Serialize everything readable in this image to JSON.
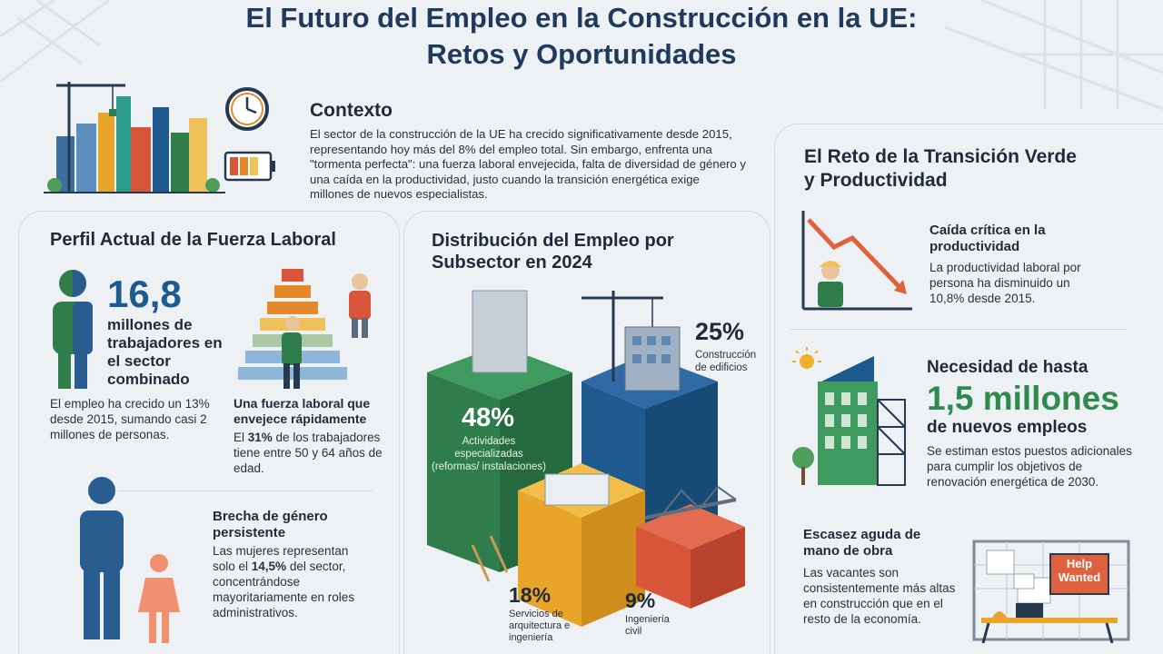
{
  "title": {
    "line1": "El Futuro del Empleo en la Construcción en la UE:",
    "line2": "Retos y Oportunidades"
  },
  "context": {
    "heading": "Contexto",
    "text": "El sector de la construcción de la UE ha crecido significativamente desde 2015, representando hoy más del 8% del empleo total. Sin embargo, enfrenta una \"tormenta perfecta\": una fuerza laboral envejecida, falta de diversidad de género y una caída en la productividad, justo cuando la transición energética exige millones de nuevos especialistas."
  },
  "workforce": {
    "heading": "Perfil Actual de la Fuerza Laboral",
    "big_number": "16,8",
    "big_label": "millones de trabajadores en el sector combinado",
    "growth_text": "El empleo ha crecido un 13% desde 2015, sumando casi 2 millones de personas.",
    "aging_heading": "Una fuerza laboral que envejece rápidamente",
    "aging_text_prefix": "El ",
    "aging_text_bold": "31%",
    "aging_text_suffix": " de los trabajadores tiene entre 50 y 64 años de edad.",
    "gender_heading": "Brecha de género persistente",
    "gender_text_prefix": "Las mujeres representan solo el ",
    "gender_text_bold": "14,5%",
    "gender_text_suffix": " del sector, concentrándose mayoritariamente en roles administrativos."
  },
  "distribution": {
    "heading": "Distribución del Empleo por Subsector en 2024",
    "segments": [
      {
        "pct": "48%",
        "label": "Actividades especializadas (reformas/ instalaciones)",
        "color": "#2f7d4a"
      },
      {
        "pct": "25%",
        "label": "Construcción de edificios",
        "color": "#1f5a8f"
      },
      {
        "pct": "18%",
        "label": "Servicios de arquitectura e ingeniería",
        "color": "#e8a52a"
      },
      {
        "pct": "9%",
        "label": "Ingeniería civil",
        "color": "#d9553a"
      }
    ]
  },
  "green": {
    "heading": "El Reto de la Transición Verde y Productividad",
    "prod_heading": "Caída crítica en la productividad",
    "prod_text": "La productividad laboral por persona ha disminuido un 10,8% desde 2015.",
    "need_heading": "Necesidad de hasta",
    "need_number": "1,5 millones",
    "need_sub": "de nuevos empleos",
    "need_text": "Se estiman estos puestos adicionales para cumplir los objetivos de renovación energética de 2030.",
    "shortage_heading": "Escasez aguda de mano de obra",
    "shortage_text": "Las vacantes son consistentemente más altas en construcción que en el resto de la economía.",
    "sign_line1": "Help",
    "sign_line2": "Wanted"
  },
  "colors": {
    "navy": "#1f3a5c",
    "green": "#2f7d4a",
    "blue": "#1f5a8f",
    "yellow": "#e8a52a",
    "red": "#d9553a"
  }
}
